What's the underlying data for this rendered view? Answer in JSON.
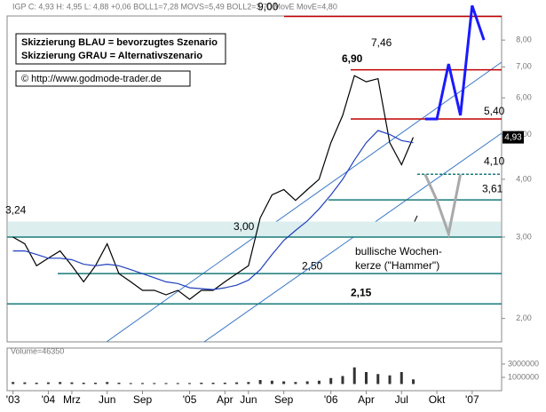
{
  "chart_data": {
    "type": "line",
    "header": "IGP C: 4,93 H: 4,95 L: 4,88 +0,06 BOLL1=7,28 MOVS=5,49 BOLL2=3,70 MovE MovE=4,80",
    "legend_box": [
      "Skizzierung BLAU = bevorzugtes Szenario",
      "Skizzierung GRAU = Alternativszenario"
    ],
    "copyright": "© http://www.godmode-trader.de",
    "log_scale": true,
    "ylim": [
      1.78,
      9.02
    ],
    "yticks": [
      {
        "value": 2,
        "label": "2,00"
      },
      {
        "value": 3,
        "label": "3,00"
      },
      {
        "value": 4,
        "label": "4,00"
      },
      {
        "value": 5,
        "label": "5,00"
      },
      {
        "value": 6,
        "label": "6,00"
      },
      {
        "value": 7,
        "label": "7,00"
      },
      {
        "value": 8,
        "label": "8,00"
      }
    ],
    "last_price": {
      "value": 4.93,
      "label": "4,93"
    },
    "categories": [
      "'03",
      null,
      null,
      "'04",
      null,
      "Mrz",
      null,
      null,
      "Jun",
      null,
      null,
      "Sep",
      null,
      null,
      null,
      "'05",
      null,
      null,
      "Apr",
      null,
      "Jun",
      null,
      null,
      "Sep",
      null,
      null,
      null,
      "'06",
      null,
      null,
      "Apr",
      null,
      null,
      "Jul",
      null,
      null,
      "Okt",
      null,
      null,
      "'07",
      null,
      null
    ],
    "series": [
      {
        "color": "#000000",
        "values": [
          3.0,
          2.9,
          2.6,
          2.7,
          2.8,
          2.6,
          2.4,
          2.6,
          2.9,
          2.5,
          2.4,
          2.3,
          2.3,
          2.25,
          2.3,
          2.2,
          2.3,
          2.3,
          2.4,
          2.5,
          2.6,
          3.3,
          3.7,
          3.8,
          3.6,
          3.8,
          4.0,
          4.8,
          5.5,
          6.7,
          6.5,
          6.6,
          4.8,
          4.3,
          4.93,
          null,
          null,
          null,
          null,
          null,
          null,
          null
        ]
      },
      {
        "name": "MovE",
        "color": "#1f3fbf",
        "values": [
          2.8,
          2.8,
          2.75,
          2.7,
          2.7,
          2.68,
          2.62,
          2.6,
          2.62,
          2.6,
          2.55,
          2.5,
          2.45,
          2.4,
          2.38,
          2.33,
          2.32,
          2.31,
          2.33,
          2.36,
          2.42,
          2.55,
          2.75,
          2.95,
          3.1,
          3.25,
          3.45,
          3.7,
          4.0,
          4.4,
          4.8,
          5.1,
          5.0,
          4.85,
          4.8,
          null,
          null,
          null,
          null,
          null,
          null,
          null
        ]
      },
      {
        "color": "#1a1aff",
        "values": [
          null,
          null,
          null,
          null,
          null,
          null,
          null,
          null,
          null,
          null,
          null,
          null,
          null,
          null,
          null,
          null,
          null,
          null,
          null,
          null,
          null,
          null,
          null,
          null,
          null,
          null,
          null,
          null,
          null,
          null,
          null,
          null,
          null,
          null,
          null,
          5.4,
          5.4,
          7.1,
          5.5,
          9.5,
          8.0,
          null
        ]
      },
      {
        "color": "#a9a9a9",
        "values": [
          null,
          null,
          null,
          null,
          null,
          null,
          null,
          null,
          null,
          null,
          null,
          null,
          null,
          null,
          null,
          null,
          null,
          null,
          null,
          null,
          null,
          null,
          null,
          null,
          null,
          null,
          null,
          null,
          null,
          null,
          null,
          null,
          null,
          null,
          null,
          4.1,
          3.6,
          3.05,
          4.1,
          null,
          null,
          null
        ]
      }
    ],
    "levels": [
      {
        "value": 9.0,
        "label": "9,00",
        "color": "#c00000"
      },
      {
        "value": 6.9,
        "label": "6,90",
        "color": "#c00000"
      },
      {
        "value": 5.4,
        "label": "5,40",
        "color": "#c00000"
      },
      {
        "value": 4.1,
        "label": "4,10",
        "color": "#1a7a7a"
      },
      {
        "value": 3.61,
        "label": "3,61",
        "color": "#1a7a7a"
      },
      {
        "value": 3.0,
        "label": "3,00",
        "color": "#1a7a7a"
      },
      {
        "value": 2.5,
        "label": "2,50",
        "color": "#1a7a7a"
      },
      {
        "value": 2.15,
        "label": "2,15",
        "color": "#1a7a7a"
      }
    ],
    "annotations": [
      {
        "value": 3.24,
        "label": "3,24"
      },
      {
        "value": 7.46,
        "label": "7,46"
      }
    ],
    "hammer_note": [
      "bullische Wochen-",
      "kerze (\"Hammer\")"
    ],
    "volume": {
      "label": "Volume=46350",
      "ylim": [
        0,
        5400000
      ],
      "yticks": [
        3000000,
        1000000
      ],
      "values": [
        300000,
        250000,
        200000,
        250000,
        300000,
        250000,
        200000,
        200000,
        300000,
        200000,
        150000,
        150000,
        150000,
        150000,
        150000,
        150000,
        200000,
        200000,
        200000,
        250000,
        300000,
        600000,
        500000,
        400000,
        300000,
        400000,
        500000,
        900000,
        1200000,
        2500000,
        1800000,
        1500000,
        1300000,
        1800000,
        700000,
        null,
        null,
        null,
        null,
        null,
        null,
        null
      ]
    }
  }
}
